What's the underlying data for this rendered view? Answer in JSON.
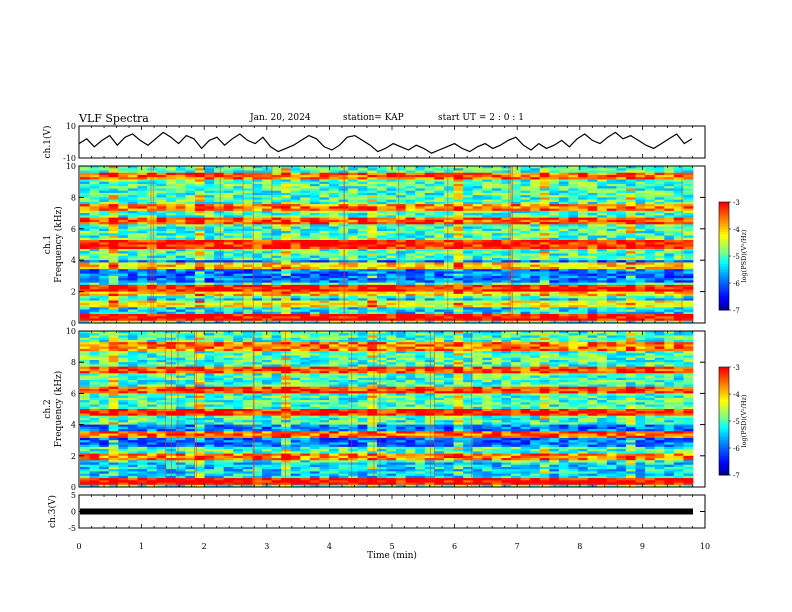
{
  "header": {
    "title": "VLF Spectra",
    "date": "Jan. 20, 2024",
    "station": "station= KAP",
    "start_ut": "start  UT  =   2 : 0  : 1"
  },
  "colors": {
    "trace": "#000000",
    "colormap": [
      "#00007f",
      "#0000ff",
      "#0080ff",
      "#00ffff",
      "#80ff80",
      "#ffff00",
      "#ff8000",
      "#ff0000",
      "#ffffff"
    ]
  },
  "chart_data": [
    {
      "type": "line",
      "ylabel": "ch.1(V)",
      "ylim": [
        -10,
        10
      ],
      "y_ticklabels": [
        "10",
        "-10"
      ],
      "xlim": [
        0,
        10
      ],
      "series": [
        {
          "values": [
            -1,
            2,
            -3,
            1,
            4,
            -2,
            3,
            5,
            1,
            -2,
            2,
            6,
            3,
            -1,
            4,
            2,
            -4,
            1,
            3,
            -2,
            2,
            5,
            1,
            -1,
            3,
            -3,
            -6,
            -4,
            -2,
            1,
            4,
            2,
            -3,
            -5,
            -2,
            3,
            4,
            1,
            -2,
            -6,
            -4,
            -1,
            -3,
            -5,
            -2,
            -4,
            -7,
            -5,
            -3,
            -1,
            -4,
            -6,
            -3,
            -1,
            -4,
            -2,
            1,
            3,
            -2,
            -5,
            -1,
            -4,
            -2,
            1,
            -3,
            2,
            5,
            1,
            -1,
            3,
            6,
            2,
            4,
            1,
            -2,
            -4,
            -1,
            2,
            5,
            -1,
            2
          ]
        }
      ]
    },
    {
      "type": "heatmap",
      "xlabel": "",
      "ylabel": "ch.1\nFrequency (kHz)",
      "ylim": [
        0,
        10
      ],
      "xlim": [
        0,
        10
      ],
      "y_ticklabels": [
        "0",
        "2",
        "4",
        "6",
        "8",
        "10"
      ],
      "colorbar": {
        "label": "log(PSD)(V²/Hz)",
        "range": [
          -7,
          -3
        ],
        "ticklabels": [
          "-3",
          "-4",
          "-5",
          "-6",
          "-7"
        ]
      },
      "bands": [
        {
          "kHz": 0.3,
          "level": -3.0
        },
        {
          "kHz": 1.2,
          "level": -4.2
        },
        {
          "kHz": 1.9,
          "level": -4.0
        },
        {
          "kHz": 2.2,
          "level": -3.1
        },
        {
          "kHz": 3.7,
          "level": -4.0
        },
        {
          "kHz": 5.0,
          "level": -3.2
        },
        {
          "kHz": 6.5,
          "level": -3.4
        },
        {
          "kHz": 7.4,
          "level": -3.6
        },
        {
          "kHz": 9.4,
          "level": -3.5
        }
      ]
    },
    {
      "type": "heatmap",
      "xlabel": "",
      "ylabel": "ch.2\nFrequency (kHz)",
      "ylim": [
        0,
        10
      ],
      "xlim": [
        0,
        10
      ],
      "y_ticklabels": [
        "0",
        "2",
        "4",
        "6",
        "8",
        "10"
      ],
      "colorbar": {
        "label": "log(PSD)(V²/Hz)",
        "range": [
          -7,
          -3
        ],
        "ticklabels": [
          "-3",
          "-4",
          "-5",
          "-6",
          "-7"
        ]
      },
      "bands": [
        {
          "kHz": 0.3,
          "level": -3.0
        },
        {
          "kHz": 1.9,
          "level": -3.6
        },
        {
          "kHz": 3.4,
          "level": -3.5
        },
        {
          "kHz": 4.8,
          "level": -3.2
        },
        {
          "kHz": 6.2,
          "level": -3.3
        },
        {
          "kHz": 7.5,
          "level": -3.4
        },
        {
          "kHz": 9.0,
          "level": -3.6
        }
      ]
    },
    {
      "type": "line",
      "ylabel": "ch.3(V)",
      "xlabel": "Time (min)",
      "ylim": [
        -5,
        5
      ],
      "y_ticklabels": [
        "5",
        "0",
        "-5"
      ],
      "xlim": [
        0,
        10
      ],
      "x_ticklabels": [
        "0",
        "1",
        "2",
        "3",
        "4",
        "5",
        "6",
        "7",
        "8",
        "9",
        "10"
      ],
      "series": [
        {
          "values": [
            0,
            0
          ]
        }
      ]
    }
  ]
}
